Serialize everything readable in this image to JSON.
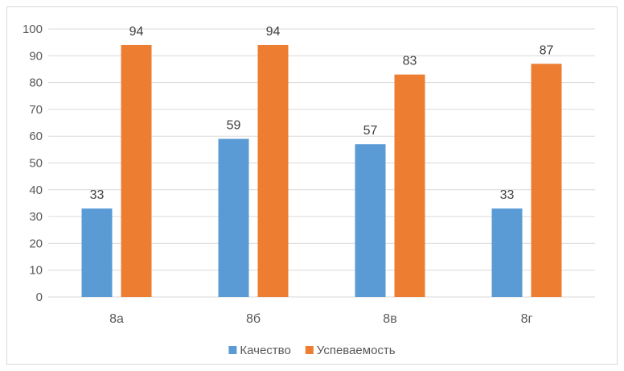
{
  "chart_data": {
    "type": "bar",
    "categories": [
      "8а",
      "8б",
      "8в",
      "8г"
    ],
    "series": [
      {
        "name": "Качество",
        "values": [
          33,
          59,
          57,
          33
        ],
        "color": "#5b9bd5"
      },
      {
        "name": "Успеваемость",
        "values": [
          94,
          94,
          83,
          87
        ],
        "color": "#ed7d31"
      }
    ],
    "title": "",
    "xlabel": "",
    "ylabel": "",
    "ylim": [
      0,
      100
    ],
    "yticks": [
      0,
      10,
      20,
      30,
      40,
      50,
      60,
      70,
      80,
      90,
      100
    ],
    "grid": true,
    "legend_position": "bottom",
    "data_labels": true
  }
}
